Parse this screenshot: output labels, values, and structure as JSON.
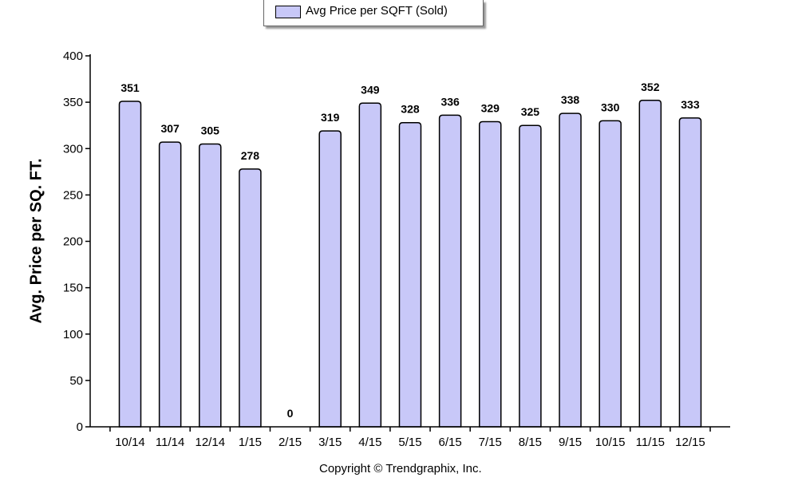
{
  "chart_data": {
    "type": "bar",
    "categories": [
      "10/14",
      "11/14",
      "12/14",
      "1/15",
      "2/15",
      "3/15",
      "4/15",
      "5/15",
      "6/15",
      "7/15",
      "8/15",
      "9/15",
      "10/15",
      "11/15",
      "12/15"
    ],
    "series": [
      {
        "name": "Avg Price per SQFT (Sold)",
        "values": [
          351,
          307,
          305,
          278,
          0,
          319,
          349,
          328,
          336,
          329,
          325,
          338,
          330,
          352,
          333
        ]
      }
    ],
    "ylabel": "Avg. Price per SQ. FT.",
    "xlabel": "",
    "ylim": [
      0,
      400
    ],
    "yticks": [
      0,
      50,
      100,
      150,
      200,
      250,
      300,
      350,
      400
    ],
    "legend": "top-center",
    "grid": false,
    "bar_color": "#c8c8f8",
    "footer": "Copyright © Trendgraphix, Inc."
  }
}
